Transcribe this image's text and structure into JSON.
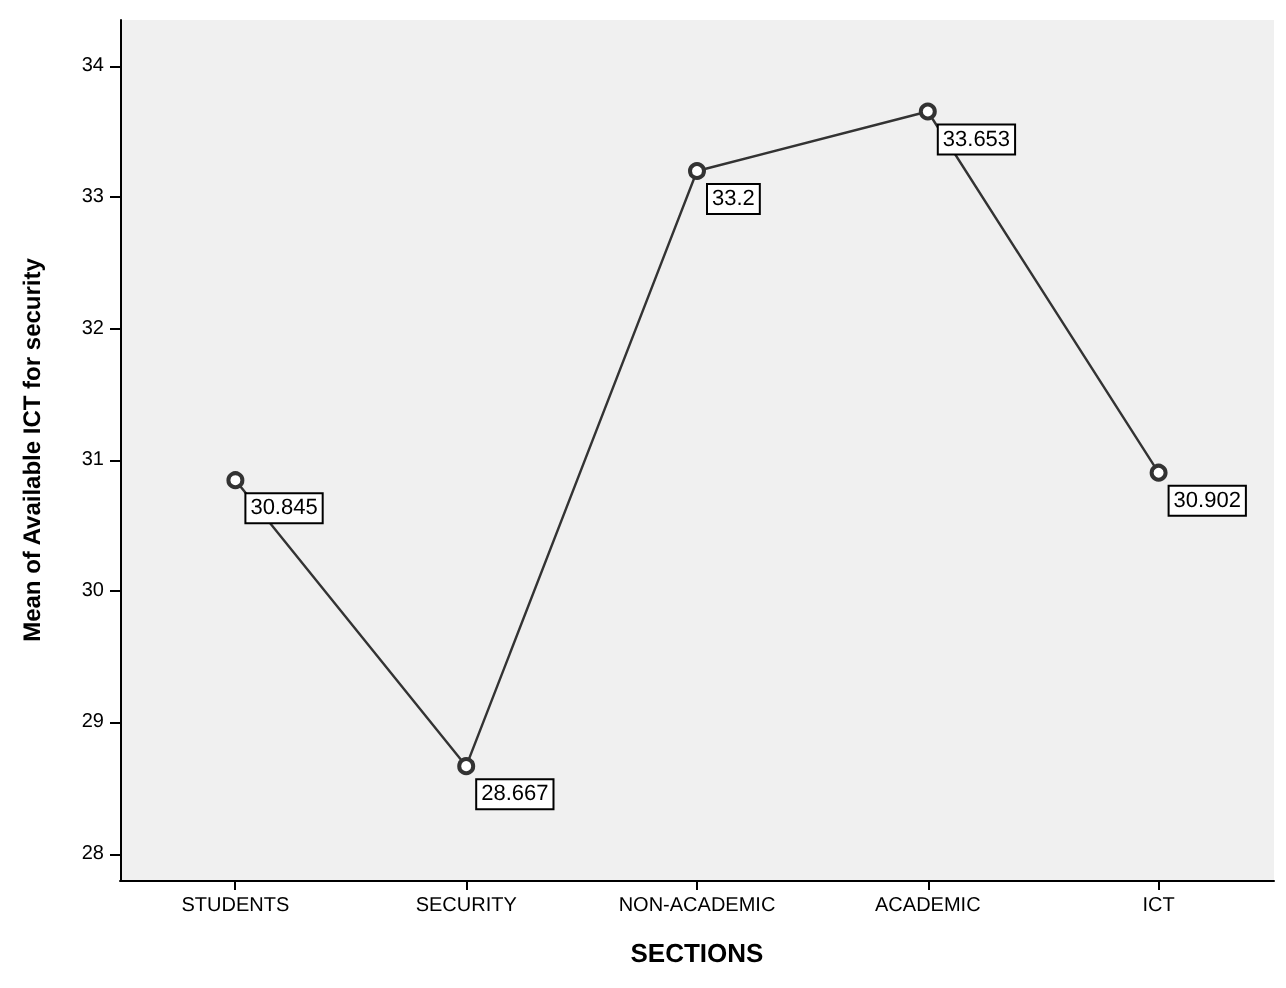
{
  "chart_data": {
    "type": "line",
    "xlabel": "SECTIONS",
    "ylabel": "Mean of Available ICT for security",
    "categories": [
      "STUDENTS",
      "SECURITY",
      "NON-ACADEMIC",
      "ACADEMIC",
      "ICT"
    ],
    "series": [
      {
        "color": "#333333",
        "values": [
          30.845,
          28.667,
          33.2,
          33.653,
          30.902
        ]
      }
    ],
    "ylim": [
      27.8,
      34.35
    ],
    "yticks": [
      28,
      29,
      30,
      31,
      32,
      33,
      34
    ],
    "data_labels": true,
    "marker": "circle",
    "line_style": "solid",
    "grid": false
  }
}
